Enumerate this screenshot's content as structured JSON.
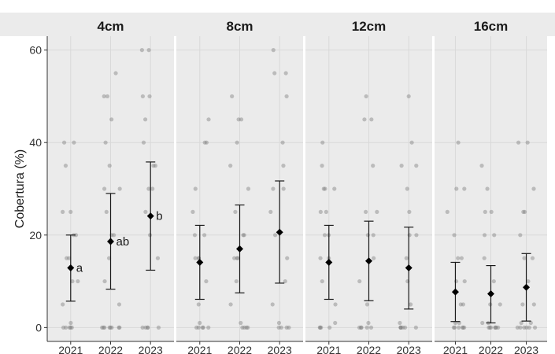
{
  "chart_data": {
    "type": "scatter",
    "ylabel": "Cobertura (%)",
    "ylim": [
      -3,
      63
    ],
    "yticks": [
      0,
      20,
      40,
      60
    ],
    "categories": [
      "2021",
      "2022",
      "2023"
    ],
    "grid": true,
    "colors": {
      "panel_bg": "#ebebeb",
      "grid": "#d9d9d9",
      "points": "#808080",
      "mean": "#000000",
      "errorbar": "#1a1a1a"
    },
    "facets": [
      {
        "name": "4cm",
        "summary": [
          {
            "year": "2021",
            "mean": 12.9,
            "lower": 5.7,
            "upper": 20.0,
            "letter": "a"
          },
          {
            "year": "2022",
            "mean": 18.6,
            "lower": 8.3,
            "upper": 29.0,
            "letter": "ab"
          },
          {
            "year": "2023",
            "mean": 24.1,
            "lower": 12.4,
            "upper": 35.8,
            "letter": "b"
          }
        ],
        "points": [
          [
            0,
            0,
            0,
            0,
            0,
            1,
            5,
            10,
            10,
            15,
            15,
            20,
            20,
            25,
            25,
            35,
            40,
            40
          ],
          [
            0,
            0,
            0,
            0,
            0,
            0,
            0,
            0,
            5,
            10,
            15,
            20,
            20,
            25,
            30,
            30,
            35,
            40,
            45,
            50,
            50,
            55
          ],
          [
            0,
            0,
            0,
            0,
            0,
            15,
            20,
            25,
            30,
            30,
            35,
            35,
            40,
            45,
            50,
            50,
            60,
            60
          ]
        ]
      },
      {
        "name": "8cm",
        "summary": [
          {
            "year": "2021",
            "mean": 14.1,
            "lower": 6.1,
            "upper": 22.1,
            "letter": ""
          },
          {
            "year": "2022",
            "mean": 17.0,
            "lower": 7.5,
            "upper": 26.5,
            "letter": ""
          },
          {
            "year": "2023",
            "mean": 20.6,
            "lower": 9.6,
            "upper": 31.7,
            "letter": ""
          }
        ],
        "points": [
          [
            0,
            0,
            0,
            0,
            0,
            1,
            5,
            10,
            15,
            15,
            15,
            20,
            20,
            25,
            30,
            40,
            40,
            45
          ],
          [
            0,
            0,
            0,
            0,
            1,
            5,
            10,
            15,
            15,
            15,
            20,
            20,
            25,
            30,
            35,
            40,
            45,
            45,
            50
          ],
          [
            0,
            0,
            0,
            0,
            1,
            5,
            10,
            15,
            20,
            25,
            30,
            30,
            35,
            40,
            50,
            55,
            55,
            60
          ]
        ]
      },
      {
        "name": "12cm",
        "summary": [
          {
            "year": "2021",
            "mean": 14.1,
            "lower": 6.1,
            "upper": 22.1,
            "letter": ""
          },
          {
            "year": "2022",
            "mean": 14.4,
            "lower": 5.8,
            "upper": 23.0,
            "letter": ""
          },
          {
            "year": "2023",
            "mean": 12.9,
            "lower": 4.0,
            "upper": 21.7,
            "letter": ""
          }
        ],
        "points": [
          [
            0,
            0,
            0,
            0,
            1,
            5,
            10,
            15,
            15,
            20,
            20,
            25,
            25,
            30,
            30,
            30,
            35,
            40
          ],
          [
            0,
            0,
            0,
            0,
            0,
            1,
            5,
            10,
            15,
            20,
            20,
            25,
            25,
            35,
            45,
            45,
            50
          ],
          [
            0,
            0,
            0,
            0,
            0,
            0,
            1,
            5,
            10,
            15,
            20,
            20,
            25,
            30,
            35,
            35,
            40,
            50
          ]
        ]
      },
      {
        "name": "16cm",
        "summary": [
          {
            "year": "2021",
            "mean": 7.7,
            "lower": 1.3,
            "upper": 14.1,
            "letter": ""
          },
          {
            "year": "2022",
            "mean": 7.3,
            "lower": 1.0,
            "upper": 13.4,
            "letter": ""
          },
          {
            "year": "2023",
            "mean": 8.7,
            "lower": 1.4,
            "upper": 16.0,
            "letter": ""
          }
        ],
        "points": [
          [
            0,
            0,
            0,
            0,
            0,
            0,
            1,
            1,
            5,
            5,
            10,
            10,
            15,
            15,
            20,
            25,
            30,
            30,
            40
          ],
          [
            0,
            0,
            0,
            0,
            0,
            0,
            0,
            1,
            1,
            5,
            5,
            10,
            15,
            20,
            20,
            25,
            25,
            30,
            35
          ],
          [
            0,
            0,
            0,
            0,
            0,
            0,
            1,
            1,
            5,
            5,
            10,
            15,
            15,
            20,
            25,
            25,
            30,
            40,
            40
          ]
        ]
      }
    ]
  }
}
